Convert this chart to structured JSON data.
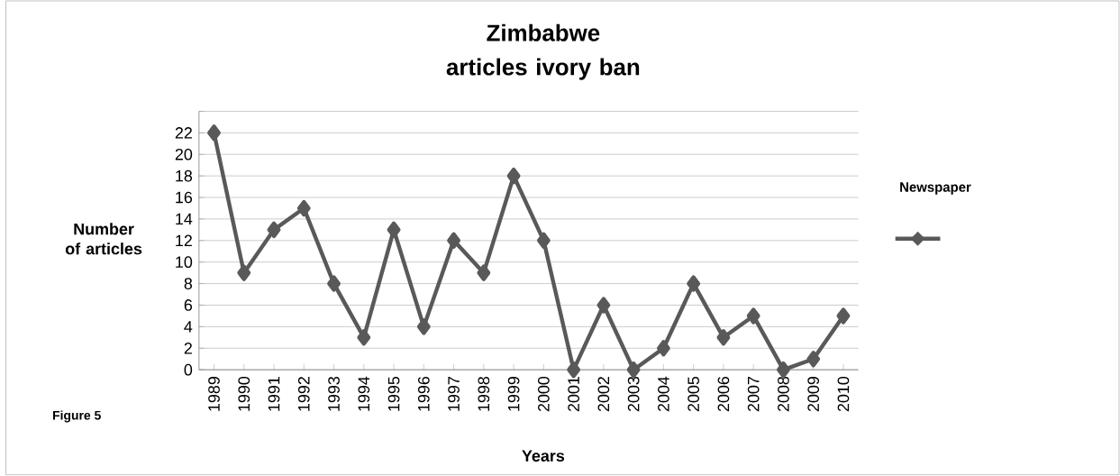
{
  "chart_data": {
    "type": "line",
    "title": "Zimbabwe articles ivory ban",
    "xlabel": "Years",
    "ylabel": "Number of articles",
    "legend_title": "Newspaper",
    "categories": [
      "1989",
      "1990",
      "1991",
      "1992",
      "1993",
      "1994",
      "1995",
      "1996",
      "1997",
      "1998",
      "1999",
      "2000",
      "2001",
      "2002",
      "2003",
      "2004",
      "2005",
      "2006",
      "2007",
      "2008",
      "2009",
      "2010"
    ],
    "series": [
      {
        "color": "#595959",
        "values": [
          22,
          9,
          13,
          15,
          8,
          3,
          13,
          4,
          12,
          9,
          18,
          12,
          0,
          6,
          0,
          2,
          8,
          3,
          5,
          0,
          1,
          5
        ]
      }
    ],
    "ylim": [
      0,
      24
    ],
    "yticks": [
      0,
      2,
      4,
      6,
      8,
      10,
      12,
      14,
      16,
      18,
      20,
      22,
      {
        "value": 24,
        "label": null
      }
    ],
    "grid": "y",
    "marker": "diamond",
    "line_style": "solid",
    "annotations": [
      "Figure 5"
    ]
  }
}
